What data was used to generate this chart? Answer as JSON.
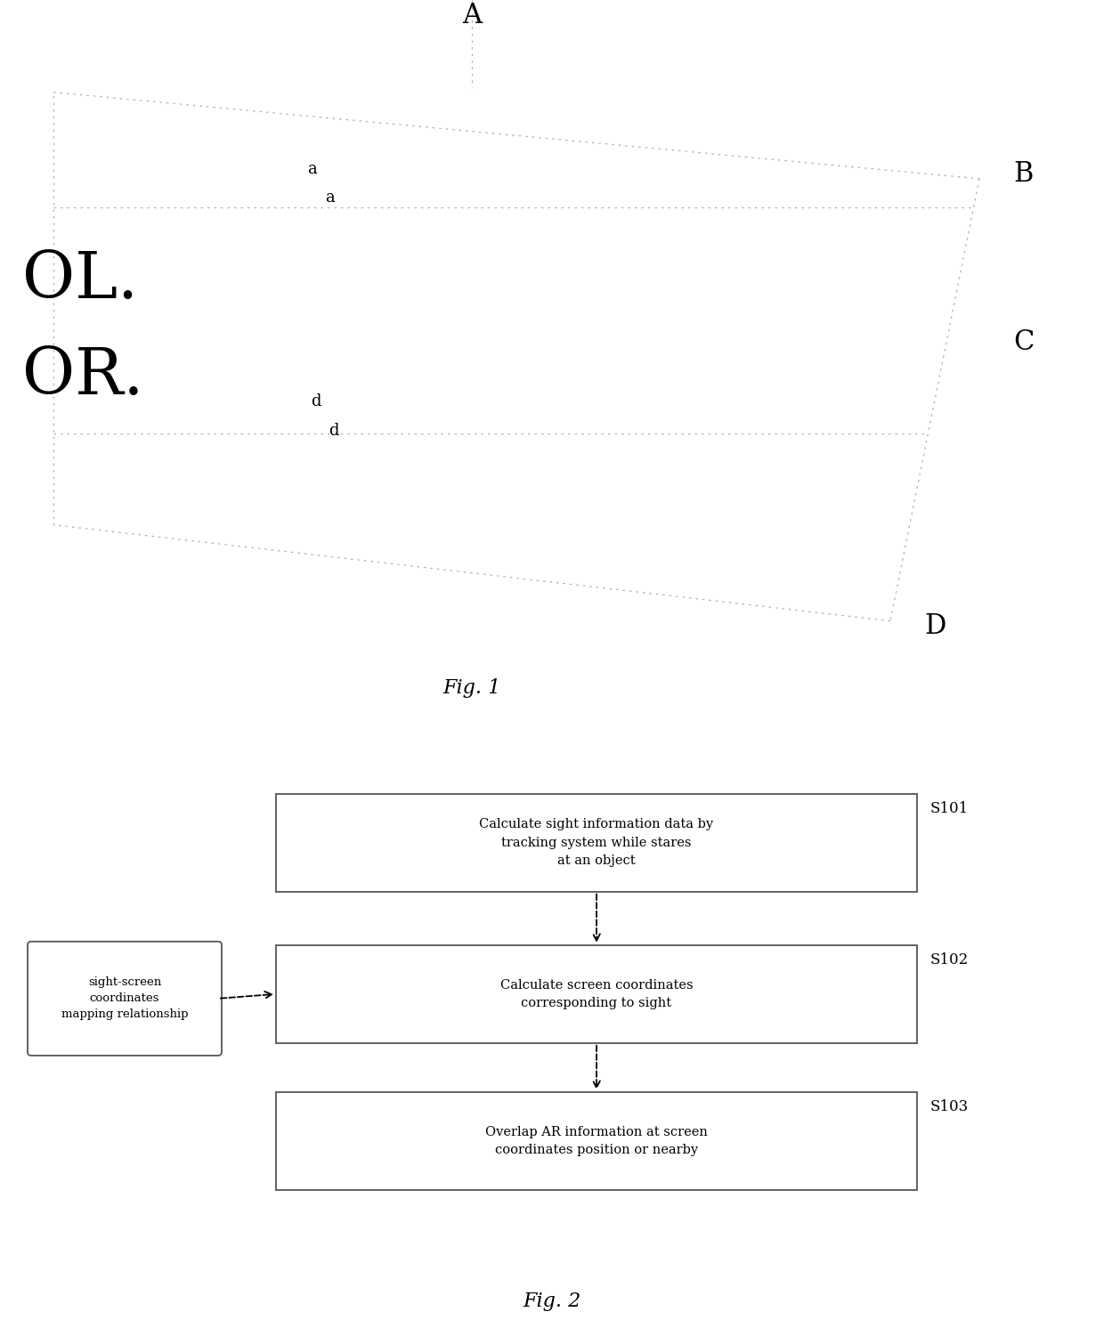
{
  "bg_color": "#ffffff",
  "fig1": {
    "title": "Fig. 1",
    "label_A": "A",
    "label_B": "B",
    "label_C": "C",
    "label_D": "D",
    "label_a1": "a",
    "label_a2": "a",
    "label_d1": "d",
    "label_d2": "d",
    "text_OL": "OL.",
    "text_OR": "OR."
  },
  "fig2": {
    "title": "Fig. 2",
    "box1_text": "Calculate sight information data by\ntracking system while stares\nat an object",
    "box2_text": "Calculate screen coordinates\ncorresponding to sight",
    "box3_text": "Overlap AR information at screen\ncoordinates position or nearby",
    "side_box_text": "sight-screen\ncoordinates\nmapping relationship",
    "label_S101": "S101",
    "label_S102": "S102",
    "label_S103": "S103"
  }
}
